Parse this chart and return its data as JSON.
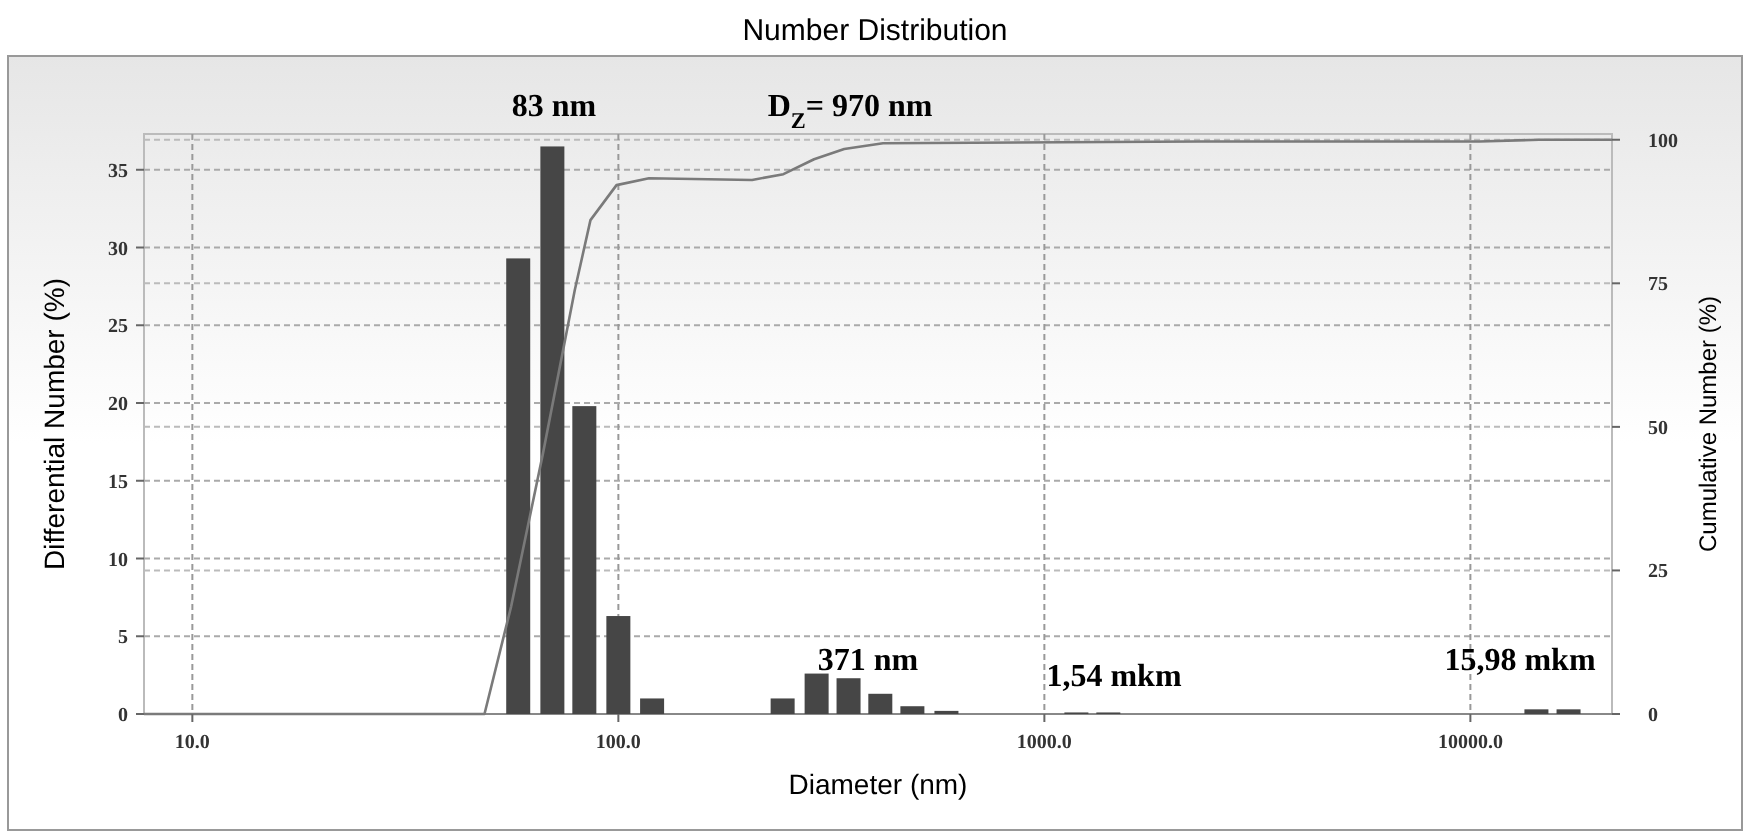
{
  "chart_data": {
    "type": "bar",
    "title": "Number Distribution",
    "xlabel": "Diameter (nm)",
    "ylabel": "Differential Number (%)",
    "y2label": "Cumulative Number (%)",
    "x": [
      58.2,
      70,
      83.2,
      100,
      120,
      243,
      292,
      347,
      412,
      490,
      589,
      1189,
      1413,
      14290,
      17000
    ],
    "log": "x",
    "xlim": [
      7.7,
      21500
    ],
    "xticks": [
      {
        "value": 10,
        "label": "10.0"
      },
      {
        "value": 100,
        "label": "100.0"
      },
      {
        "value": 1000,
        "label": "1000.0"
      },
      {
        "value": 10000,
        "label": "10000.0"
      }
    ],
    "ylim": [
      0,
      37.3
    ],
    "yticks": [
      0,
      5,
      10,
      15,
      20,
      25,
      30,
      35
    ],
    "y2lim": [
      0,
      101
    ],
    "y2ticks": [
      0,
      25,
      50,
      75,
      100
    ],
    "grid": true,
    "series": [
      {
        "color": "#464646",
        "values": [
          29.3,
          36.5,
          19.8,
          6.3,
          1.0,
          1.0,
          2.6,
          2.3,
          1.3,
          0.5,
          0.2,
          0.1,
          0.1,
          0.3,
          0.3
        ]
      },
      {
        "type": "line",
        "axis": "y2",
        "color": "#7a7a7a",
        "x": [
          7.7,
          48.5,
          56,
          66.5,
          79,
          86,
          99,
          118,
          206,
          244,
          288,
          339,
          418,
          2330,
          10500,
          14500,
          21500
        ],
        "values": [
          0,
          0,
          18.7,
          45.3,
          73.8,
          86,
          92.1,
          93.3,
          93,
          94,
          96.6,
          98.4,
          99.4,
          99.7,
          99.7,
          100,
          100
        ]
      }
    ],
    "annotations": [
      "83 nm",
      "D$_{Z}$= 970 nm",
      "371 nm",
      "1,54 mkm",
      "15,98 mkm"
    ]
  }
}
